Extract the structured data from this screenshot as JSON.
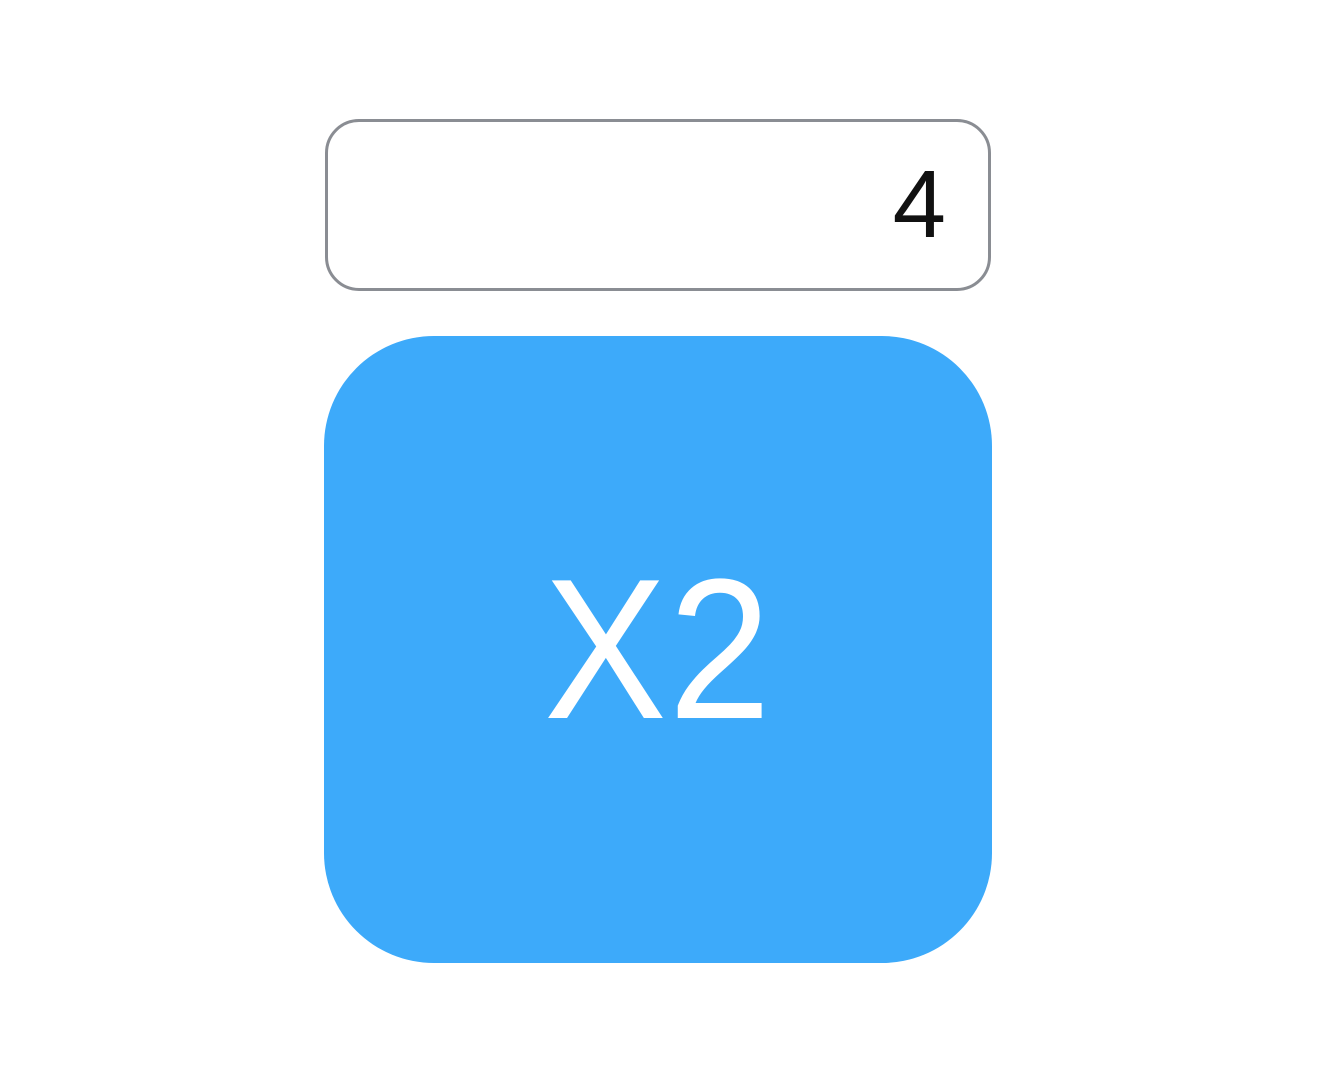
{
  "display": {
    "value": "4"
  },
  "action_button": {
    "label": "X2",
    "background_color": "#3daafa",
    "text_color": "#ffffff"
  },
  "colors": {
    "field_border": "#8a8d93",
    "background": "#ffffff"
  }
}
